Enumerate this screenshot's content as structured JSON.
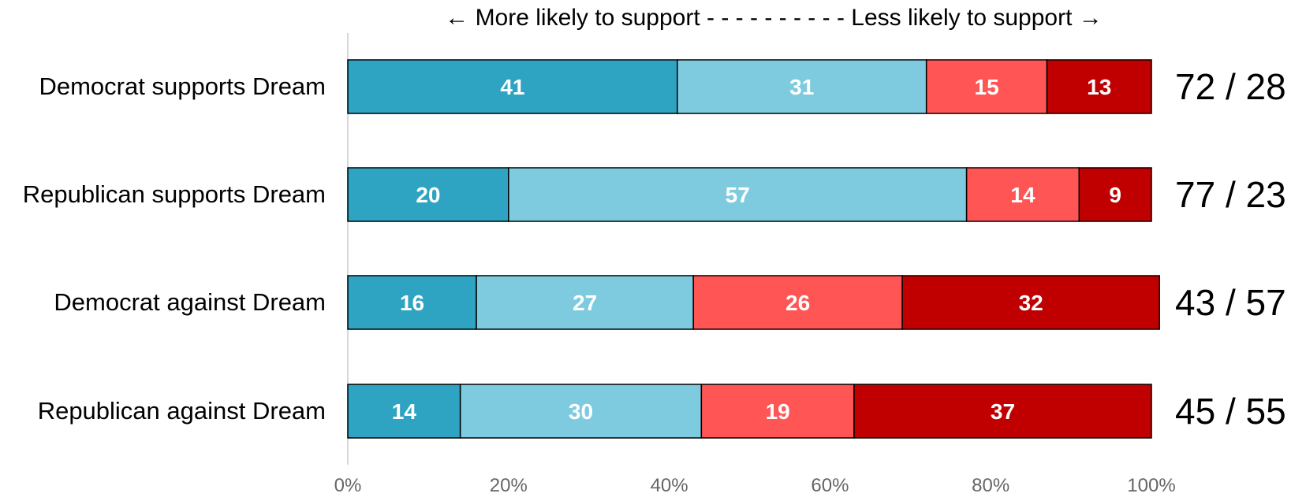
{
  "chart_data": {
    "type": "bar",
    "orientation": "horizontal",
    "stacked": true,
    "title": "← More likely to support - - - - - - - - - - Less likely to support →",
    "categories": [
      "Democrat supports Dream",
      "Republican supports Dream",
      "Democrat against Dream",
      "Republican against Dream"
    ],
    "series": [
      {
        "color": "#2ea4c2",
        "values": [
          41,
          20,
          16,
          14
        ]
      },
      {
        "color": "#7ecbe0",
        "values": [
          31,
          57,
          27,
          30
        ]
      },
      {
        "color": "#ff5555",
        "values": [
          15,
          14,
          26,
          19
        ]
      },
      {
        "color": "#c00000",
        "values": [
          13,
          9,
          32,
          37
        ]
      }
    ],
    "totals": [
      "72 / 28",
      "77 / 23",
      "43 / 57",
      "45 / 55"
    ],
    "xlim": [
      0,
      100
    ],
    "xticks": [
      "0%",
      "20%",
      "40%",
      "60%",
      "80%",
      "100%"
    ],
    "xtick_values": [
      0,
      20,
      40,
      60,
      80,
      100
    ],
    "grid": false,
    "legend": "none",
    "axis_line_color": "#cccccc"
  }
}
